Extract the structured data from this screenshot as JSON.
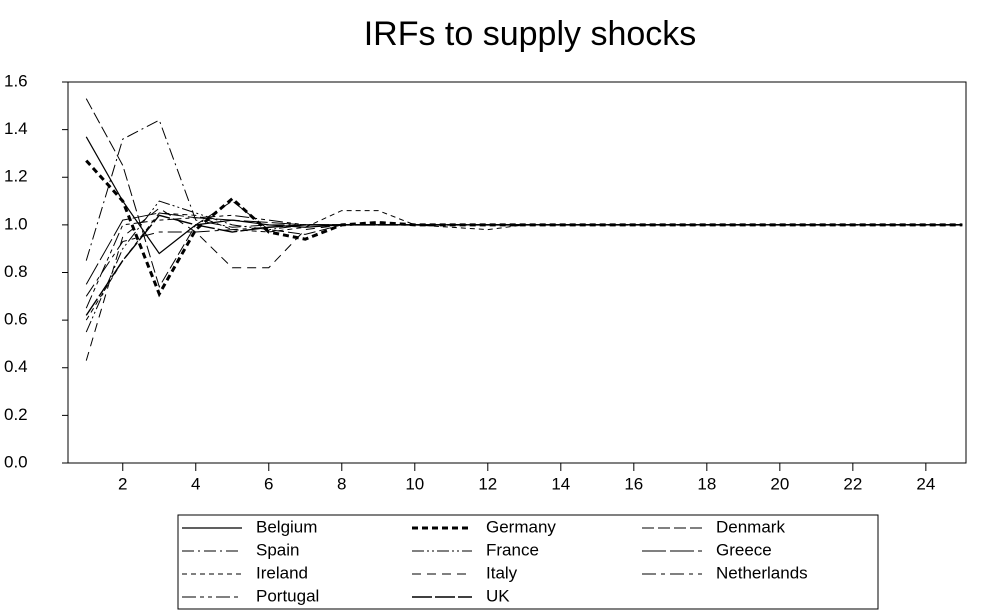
{
  "chart_data": {
    "type": "line",
    "title": "IRFs to supply shocks",
    "x": [
      1,
      2,
      3,
      4,
      5,
      6,
      7,
      8,
      9,
      10,
      11,
      12,
      13,
      14,
      15,
      16,
      17,
      18,
      19,
      20,
      21,
      22,
      23,
      24,
      25
    ],
    "xlim": [
      0.5,
      25.1
    ],
    "xticks": [
      2,
      4,
      6,
      8,
      10,
      12,
      14,
      16,
      18,
      20,
      22,
      24
    ],
    "ylim": [
      0,
      1.6
    ],
    "yticks": [
      {
        "value": 0,
        "label": "0.0"
      },
      0.2,
      0.4,
      0.6,
      0.8,
      {
        "value": 1,
        "label": "1.0"
      },
      1.2,
      1.4,
      1.6
    ],
    "series": [
      {
        "name": "Belgium",
        "color": "#000000",
        "dash": "none",
        "width": 1.2,
        "values": [
          1.37,
          1.1,
          0.88,
          1.0,
          1.02,
          1.0,
          0.99,
          1.0,
          1.0,
          1.0,
          1.0,
          1.0,
          1.0,
          1.0,
          1.0,
          1.0,
          1.0,
          1.0,
          1.0,
          1.0,
          1.0,
          1.0,
          1.0,
          1.0,
          1.0
        ]
      },
      {
        "name": "Germany",
        "color": "#000000",
        "dash": "6,4",
        "width": 3,
        "values": [
          1.27,
          1.1,
          0.71,
          0.98,
          1.11,
          0.97,
          0.94,
          1.0,
          1.01,
          1.0,
          1.0,
          1.0,
          1.0,
          1.0,
          1.0,
          1.0,
          1.0,
          1.0,
          1.0,
          1.0,
          1.0,
          1.0,
          1.0,
          1.0,
          1.0
        ]
      },
      {
        "name": "Denmark",
        "color": "#000000",
        "dash": "12,4",
        "width": 1,
        "values": [
          1.53,
          1.25,
          0.74,
          1.0,
          1.1,
          0.98,
          0.96,
          1.0,
          1.0,
          1.0,
          1.0,
          1.0,
          1.0,
          1.0,
          1.0,
          1.0,
          1.0,
          1.0,
          1.0,
          1.0,
          1.0,
          1.0,
          1.0,
          1.0,
          1.0
        ]
      },
      {
        "name": "Spain",
        "color": "#000000",
        "dash": "12,4,2,4",
        "width": 1,
        "values": [
          0.85,
          1.36,
          1.44,
          1.02,
          0.99,
          1.0,
          1.0,
          1.0,
          1.0,
          1.0,
          1.0,
          1.0,
          1.0,
          1.0,
          1.0,
          1.0,
          1.0,
          1.0,
          1.0,
          1.0,
          1.0,
          1.0,
          1.0,
          1.0,
          1.0
        ]
      },
      {
        "name": "France",
        "color": "#000000",
        "dash": "12,3,2,3,2,3",
        "width": 1,
        "values": [
          0.55,
          0.9,
          1.1,
          1.05,
          1.0,
          0.98,
          1.0,
          1.0,
          1.0,
          1.0,
          1.0,
          1.0,
          1.0,
          1.0,
          1.0,
          1.0,
          1.0,
          1.0,
          1.0,
          1.0,
          1.0,
          1.0,
          1.0,
          1.0,
          1.0
        ]
      },
      {
        "name": "Greece",
        "color": "#000000",
        "dash": "24,4",
        "width": 1,
        "values": [
          0.75,
          1.02,
          1.05,
          1.03,
          1.02,
          1.01,
          1.0,
          1.0,
          1.0,
          1.0,
          1.0,
          1.0,
          1.0,
          1.0,
          1.0,
          1.0,
          1.0,
          1.0,
          1.0,
          1.0,
          1.0,
          1.0,
          1.0,
          1.0,
          1.0
        ]
      },
      {
        "name": "Ireland",
        "color": "#000000",
        "dash": "5,4",
        "width": 1,
        "values": [
          0.6,
          0.85,
          1.05,
          1.04,
          0.98,
          0.97,
          0.99,
          1.06,
          1.06,
          1.0,
          0.99,
          0.98,
          1.0,
          1.0,
          1.0,
          1.0,
          1.0,
          1.0,
          1.0,
          1.0,
          1.0,
          1.0,
          1.0,
          1.0,
          1.0
        ]
      },
      {
        "name": "Italy",
        "color": "#000000",
        "dash": "9,6",
        "width": 1,
        "values": [
          0.43,
          0.95,
          1.07,
          0.97,
          0.82,
          0.82,
          0.98,
          1.0,
          1.0,
          1.0,
          1.0,
          1.0,
          1.0,
          1.0,
          1.0,
          1.0,
          1.0,
          1.0,
          1.0,
          1.0,
          1.0,
          1.0,
          1.0,
          1.0,
          1.0
        ]
      },
      {
        "name": "Netherlands",
        "color": "#000000",
        "dash": "14,5,4,5",
        "width": 1,
        "values": [
          0.7,
          0.93,
          0.97,
          0.97,
          0.98,
          0.99,
          1.0,
          1.0,
          1.0,
          1.0,
          1.0,
          1.0,
          1.0,
          1.0,
          1.0,
          1.0,
          1.0,
          1.0,
          1.0,
          1.0,
          1.0,
          1.0,
          1.0,
          1.0,
          1.0
        ]
      },
      {
        "name": "Portugal",
        "color": "#000000",
        "dash": "14,4,4,4,4,4",
        "width": 1,
        "values": [
          0.65,
          1.0,
          1.02,
          1.03,
          1.04,
          1.02,
          1.0,
          1.0,
          1.0,
          1.0,
          1.0,
          1.0,
          1.0,
          1.0,
          1.0,
          1.0,
          1.0,
          1.0,
          1.0,
          1.0,
          1.0,
          1.0,
          1.0,
          1.0,
          1.0
        ]
      },
      {
        "name": "UK",
        "color": "#000000",
        "dash": "20,3",
        "width": 1.4,
        "values": [
          0.62,
          0.85,
          1.04,
          1.0,
          0.97,
          0.99,
          1.0,
          1.0,
          1.0,
          1.0,
          1.0,
          1.0,
          1.0,
          1.0,
          1.0,
          1.0,
          1.0,
          1.0,
          1.0,
          1.0,
          1.0,
          1.0,
          1.0,
          1.0,
          1.0
        ]
      }
    ]
  }
}
